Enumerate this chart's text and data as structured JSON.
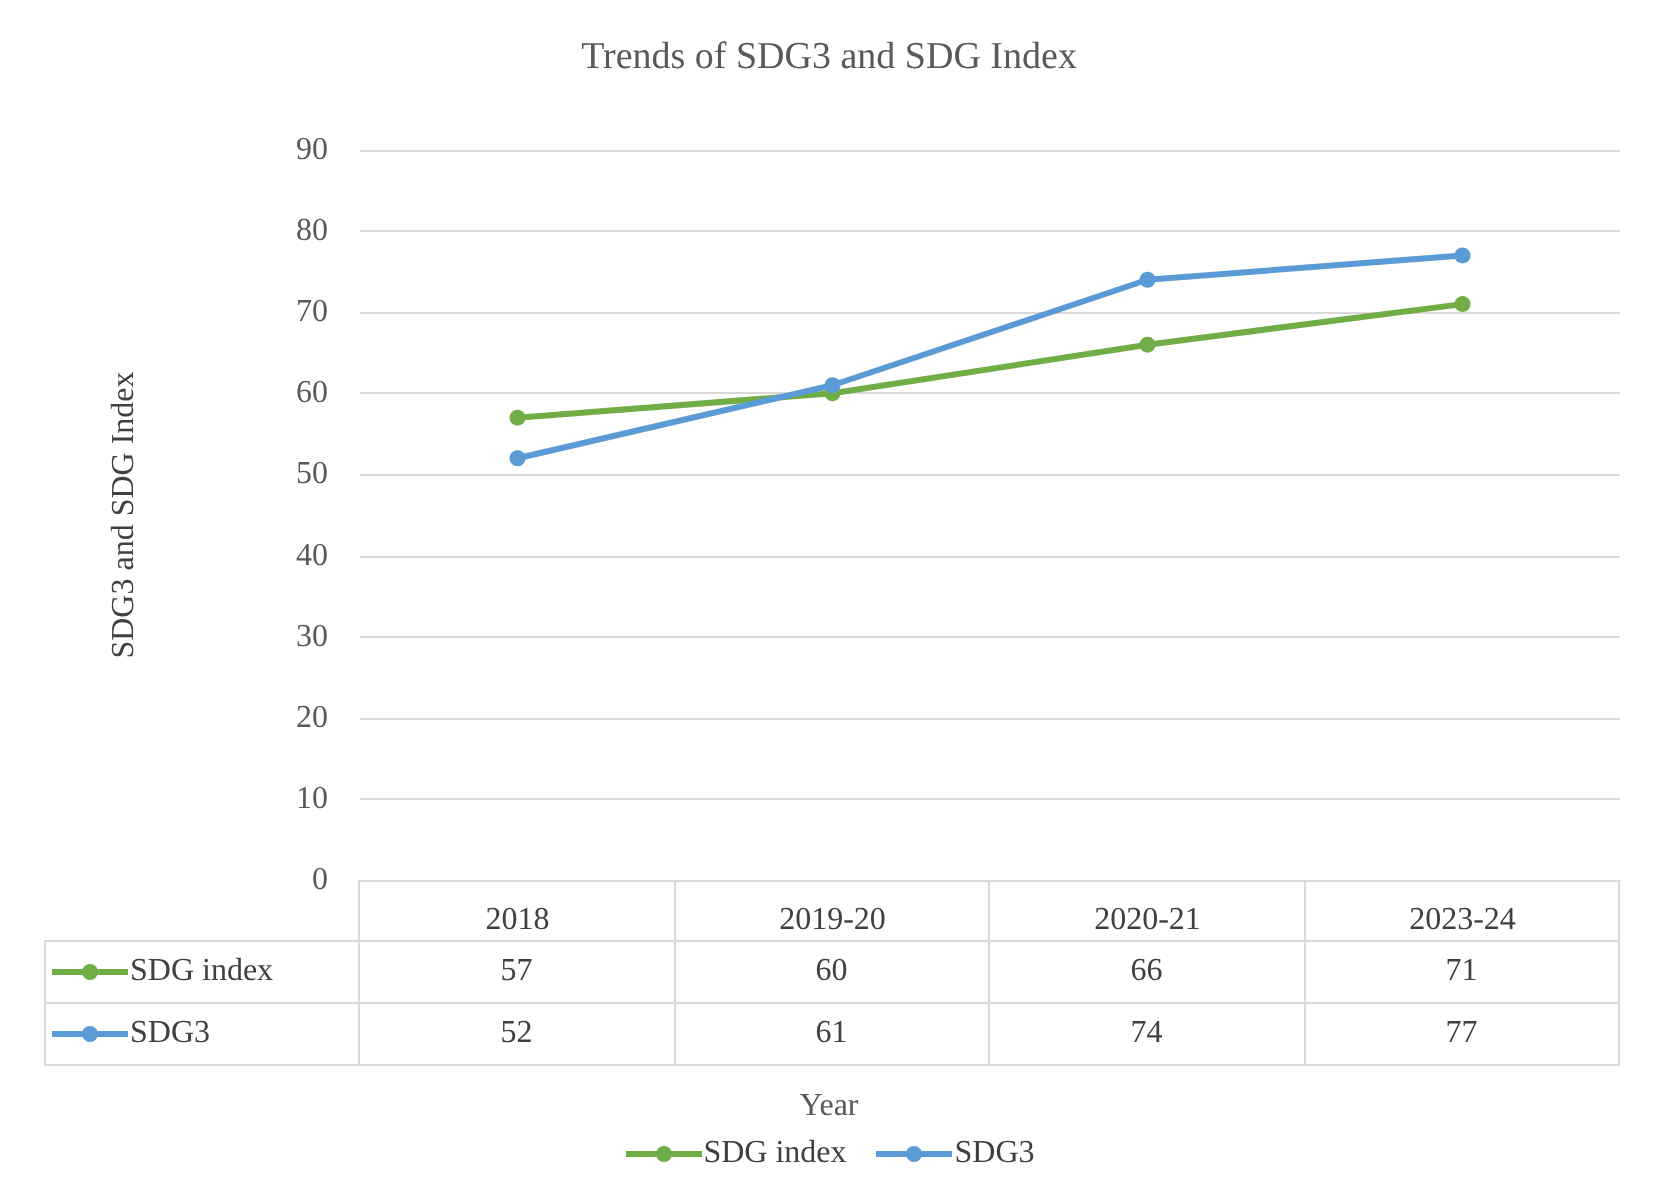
{
  "chart_data": {
    "type": "line",
    "title": "Trends of SDG3 and SDG Index",
    "annotations": [
      "Year"
    ],
    "ylabel": "SDG3 and SDG Index",
    "categories": [
      "2018",
      "2019-20",
      "2020-21",
      "2023-24"
    ],
    "series": [
      {
        "name": "SDG index",
        "color": "#70ad47",
        "values": [
          57,
          60,
          66,
          71
        ]
      },
      {
        "name": "SDG3",
        "color": "#5b9bd5",
        "values": [
          52,
          61,
          74,
          77
        ]
      }
    ],
    "ylim": [
      0,
      90
    ],
    "yticks": [
      0,
      10,
      20,
      30,
      40,
      50,
      60,
      70,
      80,
      90
    ],
    "grid": "y",
    "legend": "bottom",
    "marker": "circle",
    "data_labels": true
  }
}
